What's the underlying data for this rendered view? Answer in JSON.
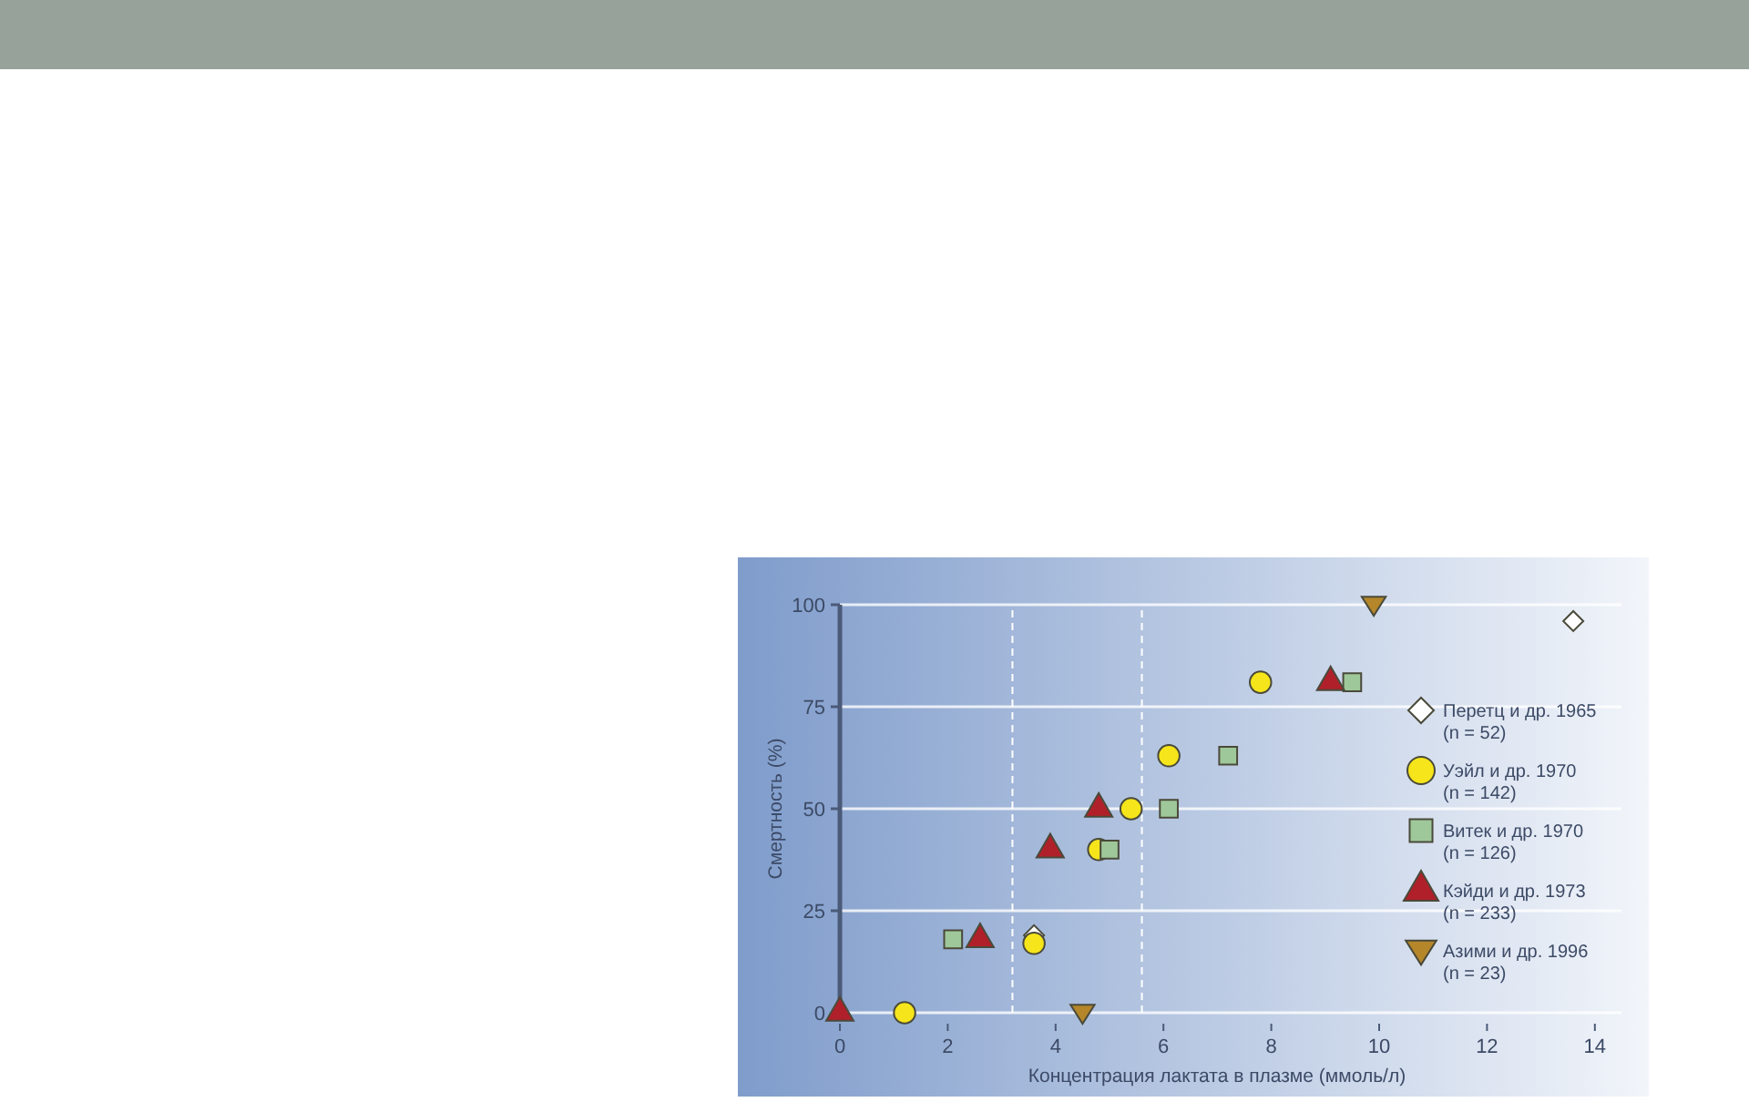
{
  "chart_data": {
    "type": "scatter",
    "xlabel": "Концентрация лактата в плазме (ммоль/л)",
    "ylabel": "Смертность (%)",
    "xlim": [
      0,
      15
    ],
    "xticks": [
      0,
      2,
      4,
      6,
      8,
      10,
      12,
      14
    ],
    "ylim": [
      0,
      100
    ],
    "yticks": [
      0,
      25,
      50,
      75,
      100
    ],
    "grid": "y",
    "legend": "right",
    "series": [
      {
        "name": "Перетц и др. 1965 (n = 52)",
        "color": "#ffffff",
        "marker": "diamond",
        "x": [
          3.6,
          13.6
        ],
        "values": [
          19,
          96
        ]
      },
      {
        "name": "Уэйл и др. 1970 (n = 142)",
        "color": "#f5e51a",
        "marker": "circle",
        "x": [
          1.2,
          3.6,
          4.8,
          5.4,
          6.1,
          7.8
        ],
        "values": [
          0,
          17,
          40,
          50,
          63,
          81
        ]
      },
      {
        "name": "Витек и др. 1970 (n = 126)",
        "color": "#9fc89a",
        "marker": "square",
        "x": [
          2.1,
          5.0,
          6.1,
          7.2,
          9.5
        ],
        "values": [
          18,
          40,
          50,
          63,
          81
        ]
      },
      {
        "name": "Кэйди и др. 1973 (n = 233)",
        "color": "#b0202a",
        "marker": "triangle",
        "x": [
          0,
          2.6,
          3.9,
          4.8,
          9.1
        ],
        "values": [
          0,
          18,
          40,
          50,
          81
        ]
      },
      {
        "name": "Азими и др. 1996 (n = 23)",
        "color": "#b5862a",
        "marker": "triangle-down",
        "x": [
          4.5,
          9.9
        ],
        "values": [
          0,
          100
        ]
      }
    ],
    "ref_lines": [
      {
        "axis": "x",
        "value": 3.2,
        "color": "#ffffff",
        "line_style": "dashed"
      },
      {
        "axis": "x",
        "value": 5.6,
        "color": "#ffffff",
        "line_style": "dashed"
      }
    ]
  }
}
